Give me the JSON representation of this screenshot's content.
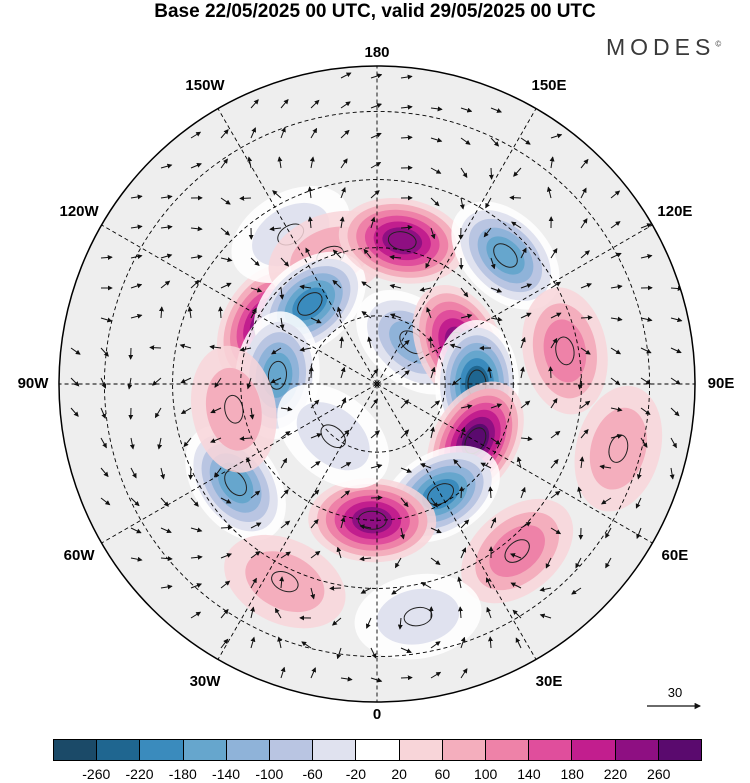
{
  "title": "Base 22/05/2025 00 UTC, valid 29/05/2025 00 UTC",
  "brand": {
    "name": "MODES",
    "mark": "©"
  },
  "meridian_labels": [
    {
      "text": "180",
      "lon": 180
    },
    {
      "text": "150W",
      "lon": -150
    },
    {
      "text": "150E",
      "lon": 150
    },
    {
      "text": "120W",
      "lon": -120
    },
    {
      "text": "120E",
      "lon": 120
    },
    {
      "text": "90W",
      "lon": -90
    },
    {
      "text": "90E",
      "lon": 90
    },
    {
      "text": "60W",
      "lon": -60
    },
    {
      "text": "60E",
      "lon": 60
    },
    {
      "text": "30W",
      "lon": -30
    },
    {
      "text": "30E",
      "lon": 30
    },
    {
      "text": "0",
      "lon": 0
    }
  ],
  "wind_reference": {
    "value": "30"
  },
  "colorbar": {
    "colors": [
      "#1b4a68",
      "#1f6690",
      "#3a8bbd",
      "#66a6cd",
      "#8fb3d9",
      "#b9c5e2",
      "#e0e2ef",
      "#ffffff",
      "#f8d5d9",
      "#f4aebd",
      "#ee82a8",
      "#e04e9c",
      "#c21e8e",
      "#8e0f82",
      "#5a0a6e"
    ],
    "ticks": [
      "-260",
      "-220",
      "-180",
      "-140",
      "-100",
      "-60",
      "-20",
      "20",
      "60",
      "100",
      "140",
      "180",
      "220",
      "260"
    ]
  },
  "anomalies": [
    {
      "lon": -118,
      "lat": 62,
      "value": 240
    },
    {
      "lon": -150,
      "lat": 52,
      "value": -80
    },
    {
      "lon": -160,
      "lat": 60,
      "value": 80
    },
    {
      "lon": -140,
      "lat": 67,
      "value": -220
    },
    {
      "lon": 170,
      "lat": 58,
      "value": 250
    },
    {
      "lon": 135,
      "lat": 50,
      "value": -200
    },
    {
      "lon": 140,
      "lat": 78,
      "value": -150
    },
    {
      "lon": 115,
      "lat": 70,
      "value": 220
    },
    {
      "lon": 100,
      "lat": 48,
      "value": 120
    },
    {
      "lon": 90,
      "lat": 68,
      "value": -260
    },
    {
      "lon": 60,
      "lat": 65,
      "value": 260
    },
    {
      "lon": 30,
      "lat": 62,
      "value": -250
    },
    {
      "lon": -2,
      "lat": 60,
      "value": 250
    },
    {
      "lon": -55,
      "lat": 52,
      "value": -200
    },
    {
      "lon": -95,
      "lat": 68,
      "value": -180
    },
    {
      "lon": -80,
      "lat": 58,
      "value": 60
    },
    {
      "lon": -25,
      "lat": 42,
      "value": 90
    },
    {
      "lon": 40,
      "lat": 42,
      "value": 100
    },
    {
      "lon": 10,
      "lat": 38,
      "value": -80
    },
    {
      "lon": -40,
      "lat": 75,
      "value": -60
    },
    {
      "lon": 75,
      "lat": 35,
      "value": 60
    }
  ]
}
